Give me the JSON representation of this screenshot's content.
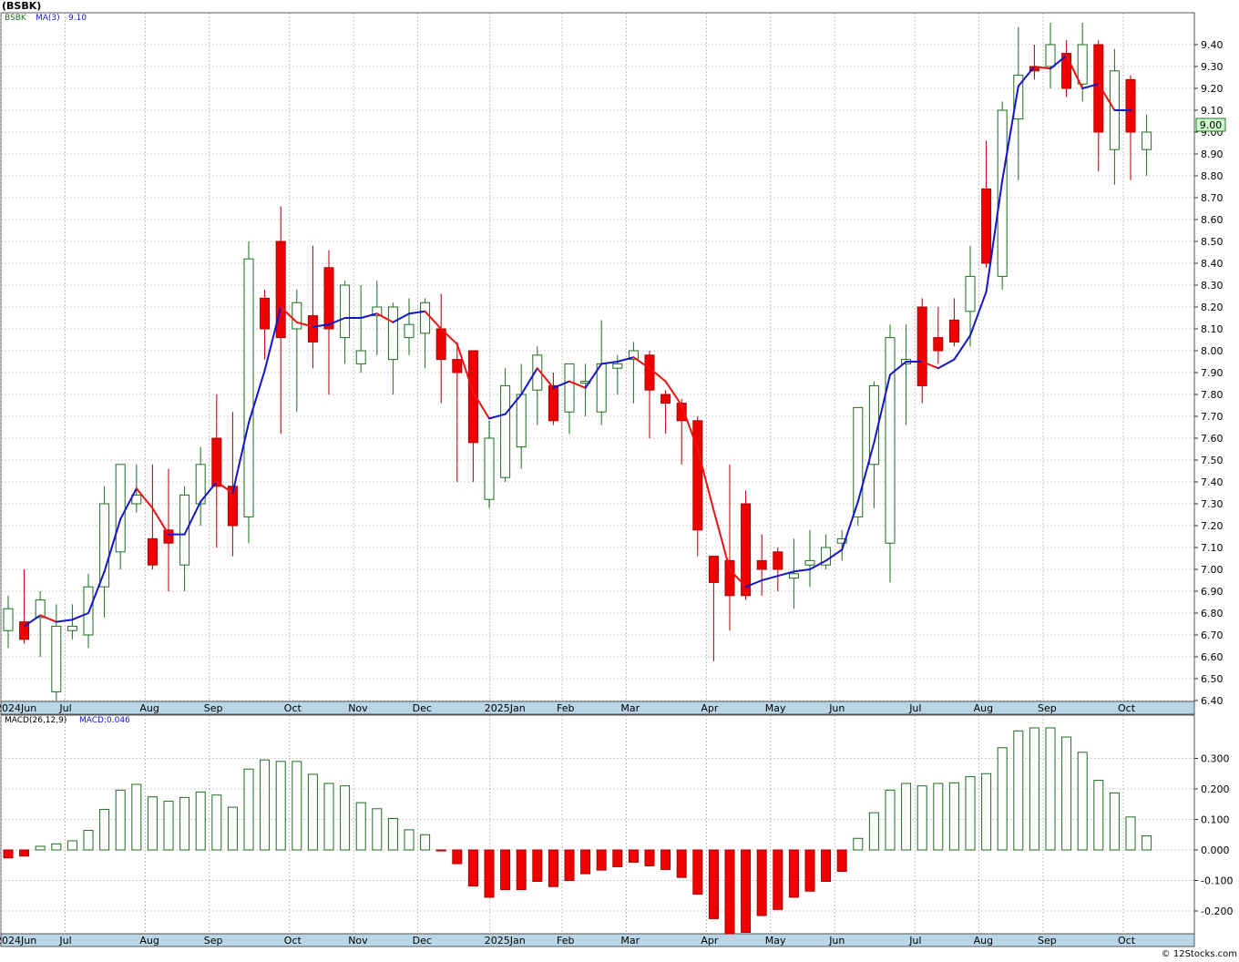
{
  "title": "(BSBK)",
  "footer": "© 12Stocks.com",
  "colors": {
    "up_body": "#ffffff",
    "up_edge": "#1f6b1f",
    "down_body": "#ee0000",
    "down_edge": "#aa0000",
    "ma_up": "#1414cc",
    "ma_down": "#ee1111",
    "grid": "#9a9a9a",
    "axis_band": "#b8d6e6",
    "last_price_box": "#ccffcc"
  },
  "chart_data": [
    {
      "type": "candlestick",
      "legend": {
        "symbol": "BSBK",
        "ma_label": "MA(3)",
        "ma_value": "9.10"
      },
      "last_price_label": "9.00",
      "ylim": [
        6.4,
        9.55
      ],
      "y_ticks": [
        "6.40",
        "6.50",
        "6.60",
        "6.70",
        "6.80",
        "6.90",
        "7.00",
        "7.10",
        "7.20",
        "7.30",
        "7.40",
        "7.50",
        "7.60",
        "7.70",
        "7.80",
        "7.90",
        "8.00",
        "8.10",
        "8.20",
        "8.30",
        "8.40",
        "8.50",
        "8.60",
        "8.70",
        "8.80",
        "8.90",
        "9.00",
        "9.10",
        "9.20",
        "9.30",
        "9.40"
      ],
      "x_labels": [
        {
          "label": "2024Jun",
          "week": 0
        },
        {
          "label": "Jul",
          "week": 4
        },
        {
          "label": "Aug",
          "week": 9
        },
        {
          "label": "Sep",
          "week": 13
        },
        {
          "label": "Oct",
          "week": 18
        },
        {
          "label": "Nov",
          "week": 22
        },
        {
          "label": "Dec",
          "week": 26
        },
        {
          "label": "2025Jan",
          "week": 30.5
        },
        {
          "label": "Feb",
          "week": 35
        },
        {
          "label": "Mar",
          "week": 39
        },
        {
          "label": "Apr",
          "week": 44
        },
        {
          "label": "May",
          "week": 48
        },
        {
          "label": "Jun",
          "week": 52
        },
        {
          "label": "Jul",
          "week": 57
        },
        {
          "label": "Aug",
          "week": 61
        },
        {
          "label": "Sep",
          "week": 65
        },
        {
          "label": "Oct",
          "week": 70
        }
      ],
      "candles": [
        [
          6.72,
          6.88,
          6.64,
          6.82
        ],
        [
          6.76,
          7.0,
          6.66,
          6.68
        ],
        [
          6.78,
          6.9,
          6.6,
          6.86
        ],
        [
          6.44,
          6.84,
          6.4,
          6.74
        ],
        [
          6.72,
          6.84,
          6.68,
          6.74
        ],
        [
          6.7,
          6.98,
          6.64,
          6.92
        ],
        [
          6.92,
          7.38,
          6.78,
          7.3
        ],
        [
          7.08,
          7.48,
          7.0,
          7.48
        ],
        [
          7.3,
          7.48,
          7.26,
          7.34
        ],
        [
          7.14,
          7.48,
          7.0,
          7.02
        ],
        [
          7.18,
          7.46,
          6.9,
          7.12
        ],
        [
          7.02,
          7.38,
          6.9,
          7.34
        ],
        [
          7.3,
          7.56,
          7.2,
          7.48
        ],
        [
          7.6,
          7.8,
          7.1,
          7.38
        ],
        [
          7.38,
          7.72,
          7.06,
          7.2
        ],
        [
          7.24,
          8.5,
          7.12,
          8.42
        ],
        [
          8.24,
          8.28,
          7.96,
          8.1
        ],
        [
          8.5,
          8.66,
          7.62,
          8.06
        ],
        [
          8.1,
          8.28,
          7.72,
          8.22
        ],
        [
          8.16,
          8.48,
          7.92,
          8.04
        ],
        [
          8.38,
          8.46,
          7.8,
          8.1
        ],
        [
          8.06,
          8.32,
          7.94,
          8.3
        ],
        [
          7.94,
          8.3,
          7.9,
          8.0
        ],
        [
          8.16,
          8.32,
          7.98,
          8.2
        ],
        [
          7.96,
          8.22,
          7.8,
          8.2
        ],
        [
          8.06,
          8.24,
          7.98,
          8.12
        ],
        [
          8.08,
          8.24,
          7.92,
          8.22
        ],
        [
          8.1,
          8.26,
          7.76,
          7.96
        ],
        [
          7.96,
          8.04,
          7.4,
          7.9
        ],
        [
          8.0,
          8.0,
          7.4,
          7.58
        ],
        [
          7.32,
          7.68,
          7.28,
          7.6
        ],
        [
          7.42,
          7.92,
          7.4,
          7.84
        ],
        [
          7.56,
          7.94,
          7.46,
          7.8
        ],
        [
          7.82,
          8.02,
          7.66,
          7.98
        ],
        [
          7.84,
          7.9,
          7.66,
          7.68
        ],
        [
          7.72,
          7.94,
          7.62,
          7.94
        ],
        [
          7.86,
          7.94,
          7.7,
          7.86
        ],
        [
          7.72,
          8.14,
          7.66,
          7.94
        ],
        [
          7.92,
          7.98,
          7.8,
          7.94
        ],
        [
          7.96,
          8.04,
          7.76,
          8.0
        ],
        [
          7.98,
          8.0,
          7.6,
          7.82
        ],
        [
          7.8,
          7.82,
          7.62,
          7.76
        ],
        [
          7.76,
          7.78,
          7.48,
          7.68
        ],
        [
          7.68,
          7.7,
          7.06,
          7.18
        ],
        [
          7.06,
          7.06,
          6.58,
          6.94
        ],
        [
          7.04,
          7.48,
          6.72,
          6.88
        ],
        [
          7.3,
          7.36,
          6.86,
          6.88
        ],
        [
          7.04,
          7.16,
          6.88,
          7.0
        ],
        [
          7.08,
          7.1,
          6.9,
          7.0
        ],
        [
          6.96,
          7.14,
          6.82,
          6.98
        ],
        [
          7.02,
          7.18,
          6.92,
          7.04
        ],
        [
          7.02,
          7.16,
          7.0,
          7.1
        ],
        [
          7.12,
          7.18,
          7.04,
          7.14
        ],
        [
          7.24,
          7.74,
          7.2,
          7.74
        ],
        [
          7.48,
          7.86,
          7.28,
          7.84
        ],
        [
          7.12,
          8.12,
          6.94,
          8.06
        ],
        [
          7.94,
          8.12,
          7.66,
          7.96
        ],
        [
          8.2,
          8.24,
          7.76,
          7.84
        ],
        [
          8.06,
          8.2,
          7.94,
          8.0
        ],
        [
          8.14,
          8.24,
          8.02,
          8.04
        ],
        [
          8.18,
          8.48,
          8.02,
          8.34
        ],
        [
          8.74,
          8.96,
          8.38,
          8.4
        ],
        [
          8.34,
          9.14,
          8.28,
          9.1
        ],
        [
          9.06,
          9.48,
          8.78,
          9.26
        ],
        [
          9.3,
          9.4,
          9.24,
          9.28
        ],
        [
          9.3,
          9.5,
          9.2,
          9.4
        ],
        [
          9.36,
          9.42,
          9.16,
          9.2
        ],
        [
          9.22,
          9.5,
          9.14,
          9.4
        ],
        [
          9.4,
          9.42,
          8.82,
          9.0
        ],
        [
          8.92,
          9.38,
          8.76,
          9.28
        ],
        [
          9.24,
          9.26,
          8.78,
          9.0
        ],
        [
          8.92,
          9.08,
          8.8,
          9.0
        ]
      ],
      "ma3": [
        {
          "week": 1,
          "value": 6.74
        },
        {
          "week": 2,
          "value": 6.79
        },
        {
          "week": 3,
          "value": 6.76
        },
        {
          "week": 4,
          "value": 6.77
        },
        {
          "week": 5,
          "value": 6.8
        },
        {
          "week": 6,
          "value": 6.99
        },
        {
          "week": 7,
          "value": 7.23
        },
        {
          "week": 8,
          "value": 7.37
        },
        {
          "week": 9,
          "value": 7.28
        },
        {
          "week": 10,
          "value": 7.16
        },
        {
          "week": 11,
          "value": 7.16
        },
        {
          "week": 12,
          "value": 7.31
        },
        {
          "week": 13,
          "value": 7.4
        },
        {
          "week": 14,
          "value": 7.35
        },
        {
          "week": 15,
          "value": 7.67
        },
        {
          "week": 16,
          "value": 7.91
        },
        {
          "week": 17,
          "value": 8.2
        },
        {
          "week": 18,
          "value": 8.13
        },
        {
          "week": 19,
          "value": 8.11
        },
        {
          "week": 20,
          "value": 8.12
        },
        {
          "week": 21,
          "value": 8.15
        },
        {
          "week": 22,
          "value": 8.15
        },
        {
          "week": 23,
          "value": 8.17
        },
        {
          "week": 24,
          "value": 8.13
        },
        {
          "week": 25,
          "value": 8.17
        },
        {
          "week": 26,
          "value": 8.18
        },
        {
          "week": 27,
          "value": 8.1
        },
        {
          "week": 28,
          "value": 8.03
        },
        {
          "week": 29,
          "value": 7.81
        },
        {
          "week": 30,
          "value": 7.69
        },
        {
          "week": 31,
          "value": 7.71
        },
        {
          "week": 32,
          "value": 7.8
        },
        {
          "week": 33,
          "value": 7.92
        },
        {
          "week": 34,
          "value": 7.83
        },
        {
          "week": 35,
          "value": 7.86
        },
        {
          "week": 36,
          "value": 7.83
        },
        {
          "week": 37,
          "value": 7.94
        },
        {
          "week": 38,
          "value": 7.95
        },
        {
          "week": 39,
          "value": 7.97
        },
        {
          "week": 40,
          "value": 7.92
        },
        {
          "week": 41,
          "value": 7.86
        },
        {
          "week": 42,
          "value": 7.75
        },
        {
          "week": 43,
          "value": 7.55
        },
        {
          "week": 44,
          "value": 7.27
        },
        {
          "week": 45,
          "value": 7.0
        },
        {
          "week": 46,
          "value": 6.92
        },
        {
          "week": 47,
          "value": 6.95
        },
        {
          "week": 48,
          "value": 6.97
        },
        {
          "week": 49,
          "value": 6.99
        },
        {
          "week": 50,
          "value": 7.0
        },
        {
          "week": 51,
          "value": 7.04
        },
        {
          "week": 52,
          "value": 7.09
        },
        {
          "week": 53,
          "value": 7.31
        },
        {
          "week": 54,
          "value": 7.58
        },
        {
          "week": 55,
          "value": 7.89
        },
        {
          "week": 56,
          "value": 7.95
        },
        {
          "week": 57,
          "value": 7.95
        },
        {
          "week": 58,
          "value": 7.92
        },
        {
          "week": 59,
          "value": 7.96
        },
        {
          "week": 60,
          "value": 8.07
        },
        {
          "week": 61,
          "value": 8.27
        },
        {
          "week": 62,
          "value": 8.78
        },
        {
          "week": 63,
          "value": 9.21
        },
        {
          "week": 64,
          "value": 9.3
        },
        {
          "week": 65,
          "value": 9.29
        },
        {
          "week": 66,
          "value": 9.35
        },
        {
          "week": 67,
          "value": 9.2
        },
        {
          "week": 68,
          "value": 9.22
        },
        {
          "week": 69,
          "value": 9.1
        },
        {
          "week": 70,
          "value": 9.1
        }
      ]
    },
    {
      "type": "bar",
      "legend": {
        "label": "MACD(26,12,9)",
        "value_label": "MACD:0.046"
      },
      "ylim": [
        -0.275,
        0.41
      ],
      "y_ticks": [
        "-0.200",
        "-0.100",
        "0.000",
        "0.100",
        "0.200",
        "0.300"
      ],
      "x_labels": [
        {
          "label": "2024Jun",
          "week": 0
        },
        {
          "label": "Jul",
          "week": 4
        },
        {
          "label": "Aug",
          "week": 9
        },
        {
          "label": "Sep",
          "week": 13
        },
        {
          "label": "Oct",
          "week": 18
        },
        {
          "label": "Nov",
          "week": 22
        },
        {
          "label": "Dec",
          "week": 26
        },
        {
          "label": "2025Jan",
          "week": 30.5
        },
        {
          "label": "Feb",
          "week": 35
        },
        {
          "label": "Mar",
          "week": 39
        },
        {
          "label": "Apr",
          "week": 44
        },
        {
          "label": "May",
          "week": 48
        },
        {
          "label": "Jun",
          "week": 52
        },
        {
          "label": "Jul",
          "week": 57
        },
        {
          "label": "Aug",
          "week": 61
        },
        {
          "label": "Sep",
          "week": 65
        },
        {
          "label": "Oct",
          "week": 70
        }
      ],
      "values": [
        -0.026,
        -0.02,
        0.012,
        0.02,
        0.03,
        0.064,
        0.133,
        0.196,
        0.215,
        0.174,
        0.16,
        0.172,
        0.19,
        0.18,
        0.14,
        0.265,
        0.295,
        0.29,
        0.29,
        0.248,
        0.218,
        0.21,
        0.155,
        0.135,
        0.103,
        0.066,
        0.05,
        -0.002,
        -0.045,
        -0.118,
        -0.155,
        -0.13,
        -0.13,
        -0.103,
        -0.12,
        -0.1,
        -0.078,
        -0.066,
        -0.055,
        -0.04,
        -0.052,
        -0.064,
        -0.09,
        -0.145,
        -0.225,
        -0.28,
        -0.27,
        -0.215,
        -0.195,
        -0.155,
        -0.135,
        -0.103,
        -0.07,
        0.038,
        0.122,
        0.196,
        0.218,
        0.21,
        0.218,
        0.22,
        0.24,
        0.25,
        0.335,
        0.39,
        0.4,
        0.4,
        0.37,
        0.32,
        0.228,
        0.187,
        0.108,
        0.046
      ]
    }
  ]
}
